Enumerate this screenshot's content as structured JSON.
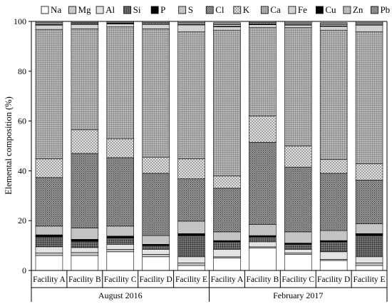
{
  "chart_data": {
    "type": "bar",
    "stacked": true,
    "title": "",
    "ylabel": "Elemental composition (%)",
    "ylim": [
      0,
      100
    ],
    "yticks": [
      0,
      20,
      40,
      60,
      80,
      100
    ],
    "legend_position": "top",
    "groups": [
      {
        "label": "August 2016",
        "categories": [
          "Facility A",
          "Facility B",
          "Facility C",
          "Facility D",
          "Facility E"
        ]
      },
      {
        "label": "February 2017",
        "categories": [
          "Facility A",
          "Facility B",
          "Facility C",
          "Facility D",
          "Facility E"
        ]
      }
    ],
    "series": [
      {
        "name": "Na",
        "fill": "#ffffff",
        "pattern": "none",
        "values": [
          6,
          6,
          7.5,
          5.5,
          2,
          5,
          9,
          6.5,
          4,
          2
        ]
      },
      {
        "name": "Mg",
        "fill": "#c8c8c8",
        "pattern": "none",
        "values": [
          1,
          1.2,
          1,
          1,
          1,
          0.5,
          0.5,
          0.5,
          0.5,
          1
        ]
      },
      {
        "name": "Al",
        "fill": "#e4e4e4",
        "pattern": "none",
        "values": [
          2.5,
          2,
          2,
          2,
          2.5,
          3,
          2,
          1.5,
          3,
          2.5
        ]
      },
      {
        "name": "Si",
        "fill": "#6e6e6e",
        "pattern": "dots",
        "values": [
          4,
          2.5,
          2.5,
          1.5,
          8.5,
          3,
          2,
          2,
          4,
          8.5
        ]
      },
      {
        "name": "P",
        "fill": "#000000",
        "pattern": "none",
        "values": [
          0.8,
          0.8,
          0.8,
          0.5,
          0.8,
          0.5,
          0.5,
          0.5,
          0.5,
          0.8
        ]
      },
      {
        "name": "S",
        "fill": "#c4c4c4",
        "pattern": "none",
        "values": [
          3.5,
          4.5,
          4,
          3.5,
          5,
          3.5,
          4.5,
          4.5,
          4,
          4
        ]
      },
      {
        "name": "Cl",
        "fill": "#8c8c8c",
        "pattern": "stipple",
        "values": [
          19.5,
          30,
          27.5,
          25,
          17,
          17.5,
          33,
          26,
          23,
          17.5
        ]
      },
      {
        "name": "K",
        "fill": "#d6d6d6",
        "pattern": "crosshatch",
        "values": [
          7.5,
          9.5,
          7.5,
          6.5,
          8,
          5,
          10.5,
          8.5,
          5.5,
          6.5
        ]
      },
      {
        "name": "Ca",
        "fill": "#9a9a9a",
        "pattern": "grid",
        "values": [
          52,
          40.5,
          45,
          51.5,
          51,
          58.5,
          35.5,
          47.5,
          52,
          53
        ]
      },
      {
        "name": "Fe",
        "fill": "#d2d2d2",
        "pattern": "none",
        "values": [
          1.7,
          1.8,
          1.2,
          1.8,
          2.8,
          1.3,
          1.2,
          1.0,
          1.5,
          2.7
        ]
      },
      {
        "name": "Cu",
        "fill": "#000000",
        "pattern": "none",
        "values": [
          0.3,
          0.3,
          0.3,
          0.2,
          0.2,
          0.2,
          0.3,
          0.2,
          0.2,
          0.2
        ]
      },
      {
        "name": "Zn",
        "fill": "#c8c8c8",
        "pattern": "fine",
        "values": [
          0.6,
          0.5,
          0.4,
          0.5,
          0.6,
          0.7,
          0.5,
          0.5,
          0.6,
          0.6
        ]
      },
      {
        "name": "Pb",
        "fill": "#8a8a8a",
        "pattern": "none",
        "values": [
          0.6,
          0.4,
          0.3,
          0.5,
          0.6,
          0.8,
          0.5,
          0.8,
          0.7,
          0.7
        ]
      }
    ]
  }
}
